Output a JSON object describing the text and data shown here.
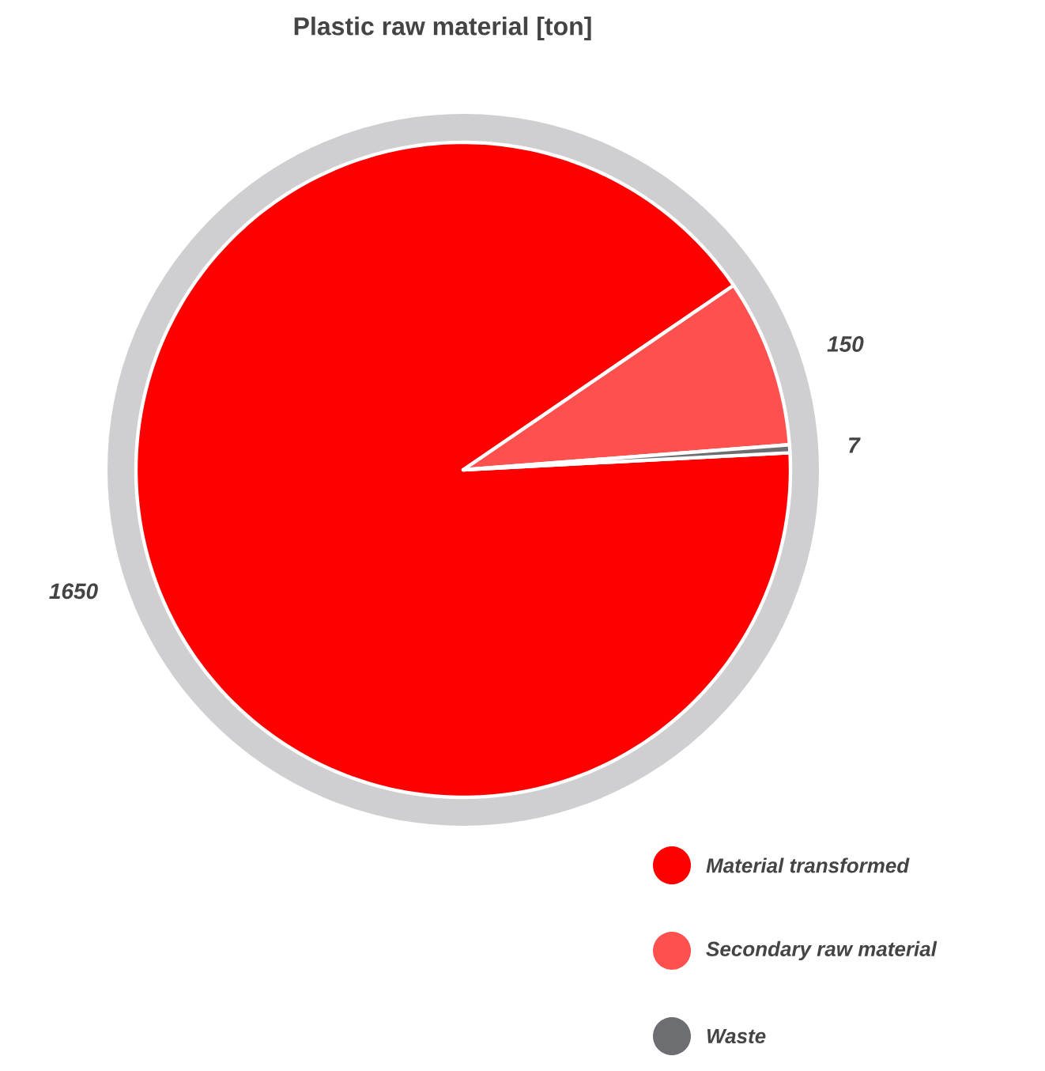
{
  "chart_data": {
    "type": "pie",
    "title": "Plastic raw material [ton]",
    "categories": [
      "Material transformed",
      "Secondary raw material",
      "Waste"
    ],
    "values": [
      1650,
      150,
      7
    ],
    "colors": [
      "#ff0000",
      "#ff5050",
      "#6d6e71"
    ],
    "data_labels": true,
    "legend": "bottom right"
  }
}
